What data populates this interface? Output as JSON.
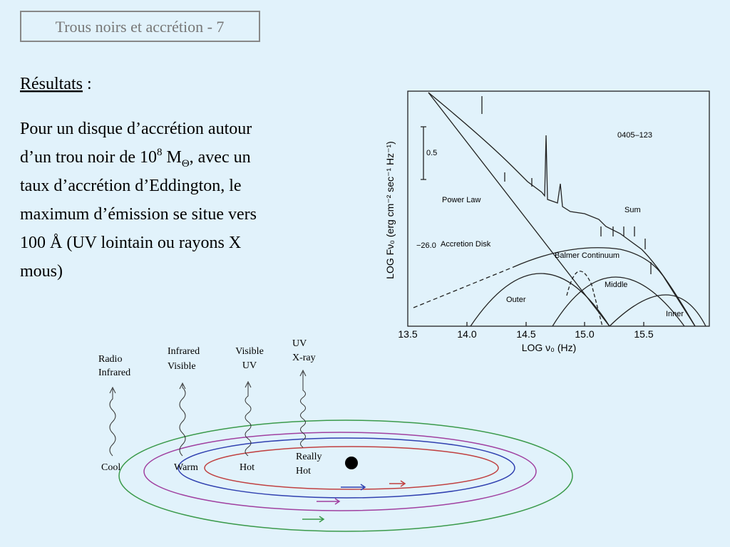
{
  "header": {
    "title": "Trous noirs et accrétion - 7"
  },
  "body": {
    "heading": "Résultats",
    "heading_suffix": " :",
    "lines": [
      "Pour un disque d’accrétion autour",
      [
        "d’un trou noir de 10",
        "8",
        " M",
        "Θ",
        ", avec un"
      ],
      "taux d’accrétion d’Eddington, le",
      "maximum d’émission se situe vers",
      "100 Å (UV lointain ou rayons X",
      "mous)"
    ]
  },
  "figure": {
    "object": "0405–123",
    "scale_bar": "0.5",
    "ref_level": "−26.0",
    "x_label": "LOG ν₀ (Hz)",
    "y_label": "LOG Fν₀ (erg cm⁻² sec⁻¹ Hz⁻¹)",
    "x_ticks": [
      "13.5",
      "14.0",
      "14.5",
      "15.0",
      "15.5"
    ],
    "curves": [
      "Power Law",
      "Sum",
      "Accretion Disk",
      "Balmer Continuum",
      "Middle",
      "Outer",
      "Inner"
    ]
  },
  "diagram": {
    "bands": [
      [
        "Radio",
        "Infrared"
      ],
      [
        "Infrared",
        "Visible"
      ],
      [
        "Visible",
        "UV"
      ],
      [
        "UV",
        "X-ray"
      ]
    ],
    "zones": [
      [
        "Cool"
      ],
      [
        "Warm"
      ],
      [
        "Hot"
      ],
      [
        "Really",
        "Hot"
      ]
    ]
  }
}
